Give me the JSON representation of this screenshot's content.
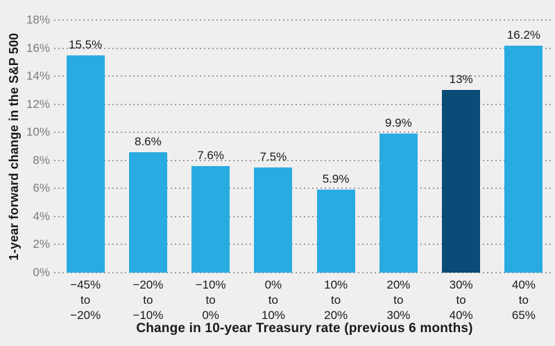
{
  "chart_data": {
    "type": "bar",
    "title": "",
    "xlabel": "Change in 10-year Treasury rate (previous 6 months)",
    "ylabel": "1-year forward change in the S&P 500",
    "categories": [
      "−45%\nto\n−20%",
      "−20%\nto\n−10%",
      "−10%\nto\n0%",
      "0%\nto\n10%",
      "10%\nto\n20%",
      "20%\nto\n30%",
      "30%\nto\n40%",
      "40%\nto\n65%"
    ],
    "values": [
      15.5,
      8.6,
      7.6,
      7.5,
      5.9,
      9.9,
      13,
      16.2
    ],
    "value_labels": [
      "15.5%",
      "8.6%",
      "7.6%",
      "7.5%",
      "5.9%",
      "9.9%",
      "13%",
      "16.2%"
    ],
    "highlighted_index": 6,
    "y_ticks": [
      "18%",
      "16%",
      "14%",
      "12%",
      "10%",
      "8%",
      "6%",
      "4%",
      "2%",
      "0%"
    ],
    "ylim": [
      0,
      18
    ],
    "grid": "dotted-horizontal",
    "legend": "none",
    "colors": {
      "background": "#efefef",
      "bar": "#29abe2",
      "bar_highlight": "#0a4b78",
      "grid": "#9b9b9b",
      "tick_text": "#7a7a7a",
      "label_text": "#1a1a1a"
    }
  }
}
